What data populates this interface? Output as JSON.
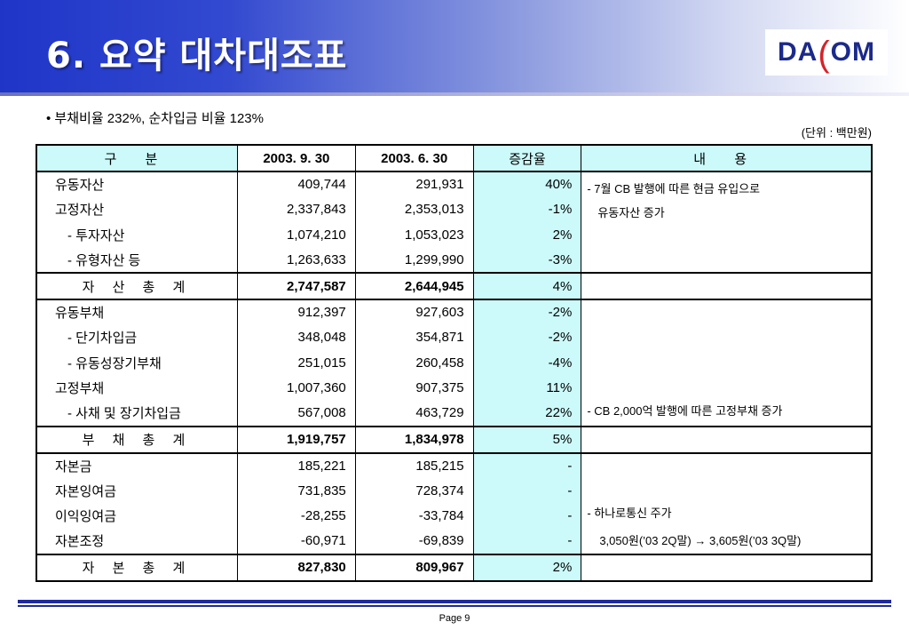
{
  "header": {
    "title": "6. 요약 대차대조표",
    "logo": {
      "left": "DA",
      "mid": "(",
      "right": "OM"
    }
  },
  "bullet": "• 부채비율 232%, 순차입금 비율 123%",
  "unit": "(단위 : 백만원)",
  "table": {
    "columns": [
      "구  분",
      "2003. 9. 30",
      "2003. 6. 30",
      "증감율",
      "내  용"
    ],
    "assets": [
      {
        "label": "유동자산",
        "sep": "409,744",
        "jun": "291,931",
        "rate": "40%"
      },
      {
        "label": "고정자산",
        "sep": "2,337,843",
        "jun": "2,353,013",
        "rate": "-1%"
      },
      {
        "label": "- 투자자산",
        "sep": "1,074,210",
        "jun": "1,053,023",
        "rate": "2%"
      },
      {
        "label": "- 유형자산 등",
        "sep": "1,263,633",
        "jun": "1,299,990",
        "rate": "-3%"
      }
    ],
    "assets_note_1": "- 7월 CB 발행에 따른 현금 유입으로",
    "assets_note_2": "유동자산 증가",
    "assets_total": {
      "label": "자 산 총 계",
      "sep": "2,747,587",
      "jun": "2,644,945",
      "rate": "4%"
    },
    "liabilities": [
      {
        "label": "유동부채",
        "sep": "912,397",
        "jun": "927,603",
        "rate": "-2%"
      },
      {
        "label": "- 단기차입금",
        "sep": "348,048",
        "jun": "354,871",
        "rate": "-2%"
      },
      {
        "label": "- 유동성장기부채",
        "sep": "251,015",
        "jun": "260,458",
        "rate": "-4%"
      },
      {
        "label": "고정부채",
        "sep": "1,007,360",
        "jun": "907,375",
        "rate": "11%"
      },
      {
        "label": "- 사채 및 장기차입금",
        "sep": "567,008",
        "jun": "463,729",
        "rate": "22%"
      }
    ],
    "liabilities_note": "- CB 2,000억 발행에 따른 고정부채 증가",
    "liabilities_total": {
      "label": "부 채 총 계",
      "sep": "1,919,757",
      "jun": "1,834,978",
      "rate": "5%"
    },
    "equity": [
      {
        "label": "자본금",
        "sep": "185,221",
        "jun": "185,215",
        "rate": "-"
      },
      {
        "label": "자본잉여금",
        "sep": "731,835",
        "jun": "728,374",
        "rate": "-"
      },
      {
        "label": "이익잉여금",
        "sep": "-28,255",
        "jun": "-33,784",
        "rate": "-"
      },
      {
        "label": "자본조정",
        "sep": "-60,971",
        "jun": "-69,839",
        "rate": "-"
      }
    ],
    "equity_note_1": "- 하나로통신 주가",
    "equity_note_2": "3,050원(’03 2Q말) → 3,605원(’03 3Q말)",
    "equity_total": {
      "label": "자 본 총 계",
      "sep": "827,830",
      "jun": "809,967",
      "rate": "2%"
    }
  },
  "footer": {
    "page": "Page 9"
  }
}
